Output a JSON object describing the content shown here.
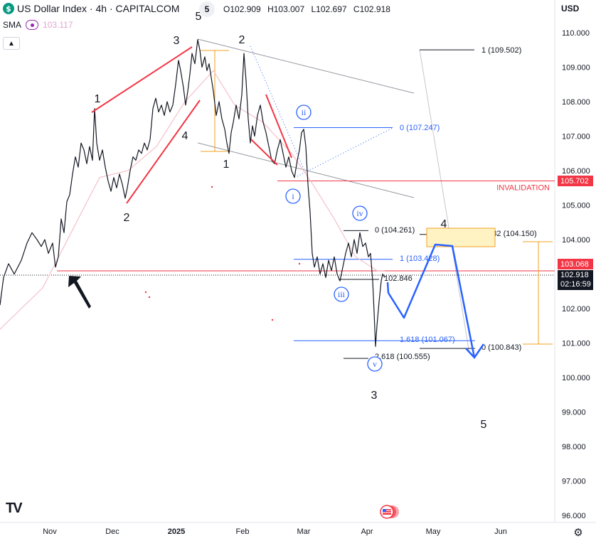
{
  "header": {
    "symbol_initial": "$",
    "title": "US Dollar Index · 4h · CAPITALCOM",
    "badge": "5",
    "ohlc": {
      "o_label": "O",
      "o": "102.909",
      "h_label": "H",
      "h": "103.007",
      "l_label": "L",
      "l": "102.697",
      "c_label": "C",
      "c": "102.918"
    },
    "indicator": {
      "name": "SMA",
      "value": "103.117"
    },
    "currency": "USD"
  },
  "logo": "TV",
  "chart_data": {
    "type": "line",
    "yaxis": {
      "ticks": [
        "110.000",
        "109.000",
        "108.000",
        "107.000",
        "106.000",
        "105.000",
        "104.000",
        "103.000",
        "102.000",
        "101.000",
        "100.000",
        "99.000",
        "98.000",
        "97.000",
        "96.000"
      ],
      "ylim": [
        95.8,
        110.4
      ]
    },
    "xaxis": {
      "ticks": [
        "Nov",
        "Dec",
        "2025",
        "Feb",
        "Mar",
        "Apr",
        "May",
        "Jun"
      ]
    },
    "series": [
      {
        "values": [
          [
            0,
            102.1
          ],
          [
            5,
            102.9
          ],
          [
            12,
            103.3
          ],
          [
            20,
            103.0
          ],
          [
            30,
            103.4
          ],
          [
            38,
            103.9
          ],
          [
            45,
            104.2
          ],
          [
            52,
            104.0
          ],
          [
            58,
            103.8
          ],
          [
            63,
            104.0
          ],
          [
            68,
            103.6
          ],
          [
            74,
            103.9
          ],
          [
            78,
            103.2
          ],
          [
            82,
            103.5
          ],
          [
            86,
            104.6
          ],
          [
            90,
            104.2
          ],
          [
            94,
            105.1
          ],
          [
            98,
            105.3
          ],
          [
            102,
            105.9
          ],
          [
            106,
            106.4
          ],
          [
            110,
            106.1
          ],
          [
            114,
            106.8
          ],
          [
            118,
            106.6
          ],
          [
            122,
            106.2
          ],
          [
            126,
            106.7
          ],
          [
            130,
            106.3
          ],
          [
            133,
            107.8
          ],
          [
            136,
            106.8
          ],
          [
            140,
            106.3
          ],
          [
            144,
            106.6
          ],
          [
            148,
            106.1
          ],
          [
            152,
            105.7
          ],
          [
            156,
            105.4
          ],
          [
            160,
            105.8
          ],
          [
            164,
            105.5
          ],
          [
            168,
            105.9
          ],
          [
            172,
            105.6
          ],
          [
            176,
            105.2
          ],
          [
            179,
            105.5
          ],
          [
            183,
            106.0
          ],
          [
            187,
            106.4
          ],
          [
            191,
            106.3
          ],
          [
            195,
            106.6
          ],
          [
            199,
            106.5
          ],
          [
            203,
            106.8
          ],
          [
            207,
            106.6
          ],
          [
            211,
            106.9
          ],
          [
            215,
            107.8
          ],
          [
            219,
            108.1
          ],
          [
            223,
            107.7
          ],
          [
            227,
            107.9
          ],
          [
            231,
            107.6
          ],
          [
            235,
            108.0
          ],
          [
            239,
            107.7
          ],
          [
            243,
            107.9
          ],
          [
            247,
            108.5
          ],
          [
            251,
            109.2
          ],
          [
            254,
            108.9
          ],
          [
            258,
            108.4
          ],
          [
            261,
            107.9
          ],
          [
            264,
            108.3
          ],
          [
            267,
            108.8
          ],
          [
            270,
            109.4
          ],
          [
            274,
            109.1
          ],
          [
            278,
            109.8
          ],
          [
            281,
            109.5
          ],
          [
            284,
            109.0
          ],
          [
            288,
            109.3
          ],
          [
            291,
            108.9
          ],
          [
            294,
            109.1
          ],
          [
            297,
            108.7
          ],
          [
            300,
            108.3
          ],
          [
            304,
            107.6
          ],
          [
            308,
            108.0
          ],
          [
            312,
            107.5
          ],
          [
            316,
            107.2
          ],
          [
            319,
            106.8
          ],
          [
            322,
            106.5
          ],
          [
            325,
            107.1
          ],
          [
            328,
            107.4
          ],
          [
            332,
            107.9
          ],
          [
            336,
            107.5
          ],
          [
            340,
            108.2
          ],
          [
            343,
            109.4
          ],
          [
            346,
            108.6
          ],
          [
            349,
            107.5
          ],
          [
            352,
            106.8
          ],
          [
            355,
            107.3
          ],
          [
            358,
            107.0
          ],
          [
            362,
            107.6
          ],
          [
            366,
            107.9
          ],
          [
            370,
            107.4
          ],
          [
            374,
            107.1
          ],
          [
            378,
            106.7
          ],
          [
            382,
            106.3
          ],
          [
            386,
            106.2
          ],
          [
            390,
            106.6
          ],
          [
            394,
            106.9
          ],
          [
            398,
            106.5
          ],
          [
            402,
            106.1
          ],
          [
            406,
            106.4
          ],
          [
            410,
            106.0
          ],
          [
            414,
            105.8
          ],
          [
            418,
            106.3
          ],
          [
            421,
            106.6
          ],
          [
            424,
            107.1
          ],
          [
            427,
            107.2
          ],
          [
            430,
            106.7
          ],
          [
            433,
            105.6
          ],
          [
            436,
            104.8
          ],
          [
            439,
            103.6
          ],
          [
            442,
            103.2
          ],
          [
            446,
            103.5
          ],
          [
            450,
            103.0
          ],
          [
            454,
            103.3
          ],
          [
            458,
            102.9
          ],
          [
            462,
            103.4
          ],
          [
            466,
            103.1
          ],
          [
            470,
            103.5
          ],
          [
            474,
            103.0
          ],
          [
            478,
            102.8
          ],
          [
            482,
            103.2
          ],
          [
            486,
            103.6
          ],
          [
            490,
            103.9
          ],
          [
            494,
            103.5
          ],
          [
            498,
            104.0
          ],
          [
            502,
            103.6
          ],
          [
            506,
            104.2
          ],
          [
            510,
            103.8
          ],
          [
            514,
            103.9
          ],
          [
            518,
            103.5
          ],
          [
            521,
            103.6
          ],
          [
            524,
            102.8
          ],
          [
            526,
            101.9
          ],
          [
            528,
            100.9
          ],
          [
            530,
            101.5
          ],
          [
            533,
            102.2
          ],
          [
            536,
            102.8
          ],
          [
            538,
            103.0
          ],
          [
            541,
            102.9
          ]
        ]
      },
      {
        "values": [
          [
            0,
            101.4
          ],
          [
            60,
            102.6
          ],
          [
            100,
            104.2
          ],
          [
            140,
            105.8
          ],
          [
            180,
            106.0
          ],
          [
            220,
            106.7
          ],
          [
            260,
            108.0
          ],
          [
            300,
            108.9
          ],
          [
            330,
            107.9
          ],
          [
            370,
            107.4
          ],
          [
            410,
            106.5
          ],
          [
            440,
            105.6
          ],
          [
            470,
            104.6
          ],
          [
            500,
            103.5
          ],
          [
            530,
            103.1
          ],
          [
            541,
            103.1
          ]
        ]
      }
    ],
    "fib_levels": [
      {
        "label": "1 (109.502)",
        "price": 109.502
      },
      {
        "label": "0 (107.247)",
        "price": 107.247
      },
      {
        "label": "0 (104.261)",
        "price": 104.261
      },
      {
        "label": "0.382 (104.150)",
        "price": 104.15
      },
      {
        "label": "1 (103.428)",
        "price": 103.428
      },
      {
        "label": "1.618 (101.067)",
        "price": 101.067
      },
      {
        "label": "0 (100.843)",
        "price": 100.843
      },
      {
        "label": "2.618 (100.555)",
        "price": 100.555
      },
      {
        "label": "102.846",
        "price": 102.846
      }
    ],
    "invalidation": {
      "label": "INVALIDATION",
      "price": 105.702
    },
    "wave_labels": [
      "1",
      "2",
      "3",
      "4",
      "5",
      "2",
      "1",
      "3",
      "4",
      "5",
      "ii",
      "i",
      "iii",
      "iv",
      "v"
    ],
    "price_tags": [
      {
        "label": "105.702",
        "color": "#f23645"
      },
      {
        "label": "103.068",
        "color": "#f23645"
      },
      {
        "label": "102.918",
        "sub": "02:16:59",
        "color": "#131722"
      }
    ]
  }
}
